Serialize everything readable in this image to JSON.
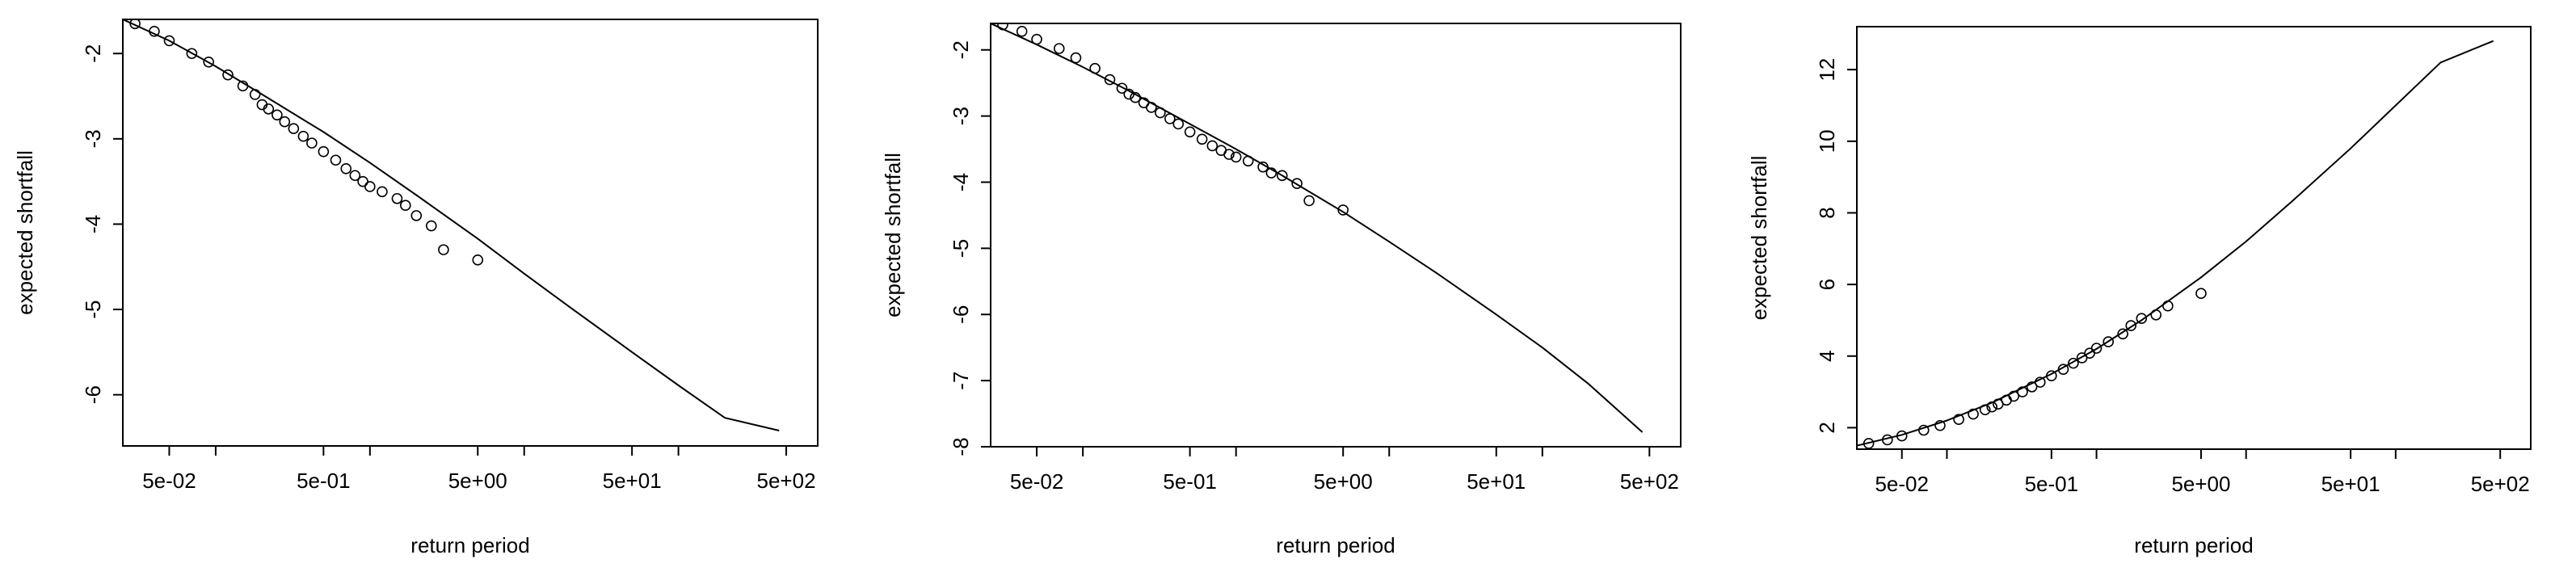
{
  "chart_data": [
    {
      "type": "scatter",
      "xlabel": "return period",
      "ylabel": "expected shortfall",
      "x_scale": "log",
      "xlim": [
        0.025,
        800
      ],
      "ylim": [
        -6.6,
        -1.6
      ],
      "x_ticks": [
        {
          "v": 0.05,
          "label": "5e-02"
        },
        {
          "v": 0.5,
          "label": "5e-01"
        },
        {
          "v": 5,
          "label": "5e+00"
        },
        {
          "v": 50,
          "label": "5e+01"
        },
        {
          "v": 500,
          "label": "5e+02"
        }
      ],
      "x_minor_ticks": [
        0.1,
        1,
        10,
        100
      ],
      "y_ticks": [
        {
          "v": -2,
          "label": "-2"
        },
        {
          "v": -3,
          "label": "-3"
        },
        {
          "v": -4,
          "label": "-4"
        },
        {
          "v": -5,
          "label": "-5"
        },
        {
          "v": -6,
          "label": "-6"
        }
      ],
      "curve": [
        [
          0.025,
          -1.6
        ],
        [
          0.05,
          -1.85
        ],
        [
          0.1,
          -2.15
        ],
        [
          0.2,
          -2.48
        ],
        [
          0.5,
          -2.92
        ],
        [
          1,
          -3.28
        ],
        [
          2,
          -3.66
        ],
        [
          5,
          -4.17
        ],
        [
          10,
          -4.58
        ],
        [
          20,
          -4.98
        ],
        [
          50,
          -5.5
        ],
        [
          100,
          -5.89
        ],
        [
          200,
          -6.27
        ],
        [
          450,
          -6.42
        ]
      ],
      "points": [
        [
          0.03,
          -1.65
        ],
        [
          0.04,
          -1.74
        ],
        [
          0.05,
          -1.85
        ],
        [
          0.07,
          -2.0
        ],
        [
          0.09,
          -2.1
        ],
        [
          0.12,
          -2.25
        ],
        [
          0.15,
          -2.38
        ],
        [
          0.18,
          -2.48
        ],
        [
          0.2,
          -2.6
        ],
        [
          0.22,
          -2.65
        ],
        [
          0.25,
          -2.72
        ],
        [
          0.28,
          -2.8
        ],
        [
          0.32,
          -2.88
        ],
        [
          0.37,
          -2.97
        ],
        [
          0.42,
          -3.05
        ],
        [
          0.5,
          -3.15
        ],
        [
          0.6,
          -3.25
        ],
        [
          0.7,
          -3.35
        ],
        [
          0.8,
          -3.43
        ],
        [
          0.9,
          -3.5
        ],
        [
          1.0,
          -3.56
        ],
        [
          1.2,
          -3.62
        ],
        [
          1.5,
          -3.7
        ],
        [
          1.7,
          -3.78
        ],
        [
          2.0,
          -3.9
        ],
        [
          2.5,
          -4.02
        ],
        [
          3.0,
          -4.3
        ],
        [
          5.0,
          -4.42
        ]
      ]
    },
    {
      "type": "scatter",
      "xlabel": "return period",
      "ylabel": "expected shortfall",
      "x_scale": "log",
      "xlim": [
        0.025,
        800
      ],
      "ylim": [
        -8.0,
        -1.6
      ],
      "x_ticks": [
        {
          "v": 0.05,
          "label": "5e-02"
        },
        {
          "v": 0.5,
          "label": "5e-01"
        },
        {
          "v": 5,
          "label": "5e+00"
        },
        {
          "v": 50,
          "label": "5e+01"
        },
        {
          "v": 500,
          "label": "5e+02"
        }
      ],
      "x_minor_ticks": [
        0.1,
        1,
        10,
        100
      ],
      "y_ticks": [
        {
          "v": -2,
          "label": "-2"
        },
        {
          "v": -3,
          "label": "-3"
        },
        {
          "v": -4,
          "label": "-4"
        },
        {
          "v": -5,
          "label": "-5"
        },
        {
          "v": -6,
          "label": "-6"
        },
        {
          "v": -7,
          "label": "-7"
        },
        {
          "v": -8,
          "label": "-8"
        }
      ],
      "curve": [
        [
          0.025,
          -1.6
        ],
        [
          0.05,
          -1.92
        ],
        [
          0.1,
          -2.26
        ],
        [
          0.2,
          -2.62
        ],
        [
          0.5,
          -3.12
        ],
        [
          1,
          -3.5
        ],
        [
          2,
          -3.9
        ],
        [
          5,
          -4.45
        ],
        [
          10,
          -4.9
        ],
        [
          20,
          -5.36
        ],
        [
          50,
          -6.0
        ],
        [
          100,
          -6.5
        ],
        [
          200,
          -7.05
        ],
        [
          450,
          -7.78
        ]
      ],
      "points": [
        [
          0.03,
          -1.62
        ],
        [
          0.04,
          -1.72
        ],
        [
          0.05,
          -1.84
        ],
        [
          0.07,
          -1.98
        ],
        [
          0.09,
          -2.12
        ],
        [
          0.12,
          -2.28
        ],
        [
          0.15,
          -2.45
        ],
        [
          0.18,
          -2.58
        ],
        [
          0.2,
          -2.67
        ],
        [
          0.22,
          -2.72
        ],
        [
          0.25,
          -2.8
        ],
        [
          0.28,
          -2.87
        ],
        [
          0.32,
          -2.95
        ],
        [
          0.37,
          -3.04
        ],
        [
          0.42,
          -3.12
        ],
        [
          0.5,
          -3.24
        ],
        [
          0.6,
          -3.35
        ],
        [
          0.7,
          -3.45
        ],
        [
          0.8,
          -3.52
        ],
        [
          0.9,
          -3.58
        ],
        [
          1.0,
          -3.62
        ],
        [
          1.2,
          -3.68
        ],
        [
          1.5,
          -3.77
        ],
        [
          1.7,
          -3.86
        ],
        [
          2.0,
          -3.9
        ],
        [
          2.5,
          -4.02
        ],
        [
          3.0,
          -4.28
        ],
        [
          5.0,
          -4.42
        ]
      ]
    },
    {
      "type": "scatter",
      "xlabel": "return period",
      "ylabel": "expected shortfall",
      "x_scale": "log",
      "xlim": [
        0.025,
        800
      ],
      "ylim": [
        1.4,
        13.2
      ],
      "x_ticks": [
        {
          "v": 0.05,
          "label": "5e-02"
        },
        {
          "v": 0.5,
          "label": "5e-01"
        },
        {
          "v": 5,
          "label": "5e+00"
        },
        {
          "v": 50,
          "label": "5e+01"
        },
        {
          "v": 500,
          "label": "5e+02"
        }
      ],
      "x_minor_ticks": [
        0.1,
        1,
        10,
        100
      ],
      "y_ticks": [
        {
          "v": 2,
          "label": "2"
        },
        {
          "v": 4,
          "label": "4"
        },
        {
          "v": 6,
          "label": "6"
        },
        {
          "v": 8,
          "label": "8"
        },
        {
          "v": 10,
          "label": "10"
        },
        {
          "v": 12,
          "label": "12"
        }
      ],
      "curve": [
        [
          0.025,
          1.5
        ],
        [
          0.05,
          1.8
        ],
        [
          0.1,
          2.2
        ],
        [
          0.2,
          2.7
        ],
        [
          0.5,
          3.5
        ],
        [
          1,
          4.2
        ],
        [
          2,
          5.0
        ],
        [
          5,
          6.2
        ],
        [
          10,
          7.2
        ],
        [
          20,
          8.3
        ],
        [
          50,
          9.8
        ],
        [
          100,
          11.0
        ],
        [
          200,
          12.2
        ],
        [
          450,
          12.8
        ]
      ],
      "points": [
        [
          0.03,
          1.56
        ],
        [
          0.04,
          1.66
        ],
        [
          0.05,
          1.77
        ],
        [
          0.07,
          1.93
        ],
        [
          0.09,
          2.06
        ],
        [
          0.12,
          2.23
        ],
        [
          0.15,
          2.38
        ],
        [
          0.18,
          2.5
        ],
        [
          0.2,
          2.58
        ],
        [
          0.22,
          2.66
        ],
        [
          0.25,
          2.77
        ],
        [
          0.28,
          2.88
        ],
        [
          0.32,
          3.0
        ],
        [
          0.37,
          3.14
        ],
        [
          0.42,
          3.27
        ],
        [
          0.5,
          3.45
        ],
        [
          0.6,
          3.63
        ],
        [
          0.7,
          3.8
        ],
        [
          0.8,
          3.95
        ],
        [
          0.9,
          4.08
        ],
        [
          1.0,
          4.22
        ],
        [
          1.2,
          4.4
        ],
        [
          1.5,
          4.62
        ],
        [
          1.7,
          4.85
        ],
        [
          2.0,
          5.05
        ],
        [
          2.5,
          5.15
        ],
        [
          3.0,
          5.4
        ],
        [
          5.0,
          5.75
        ]
      ]
    }
  ]
}
